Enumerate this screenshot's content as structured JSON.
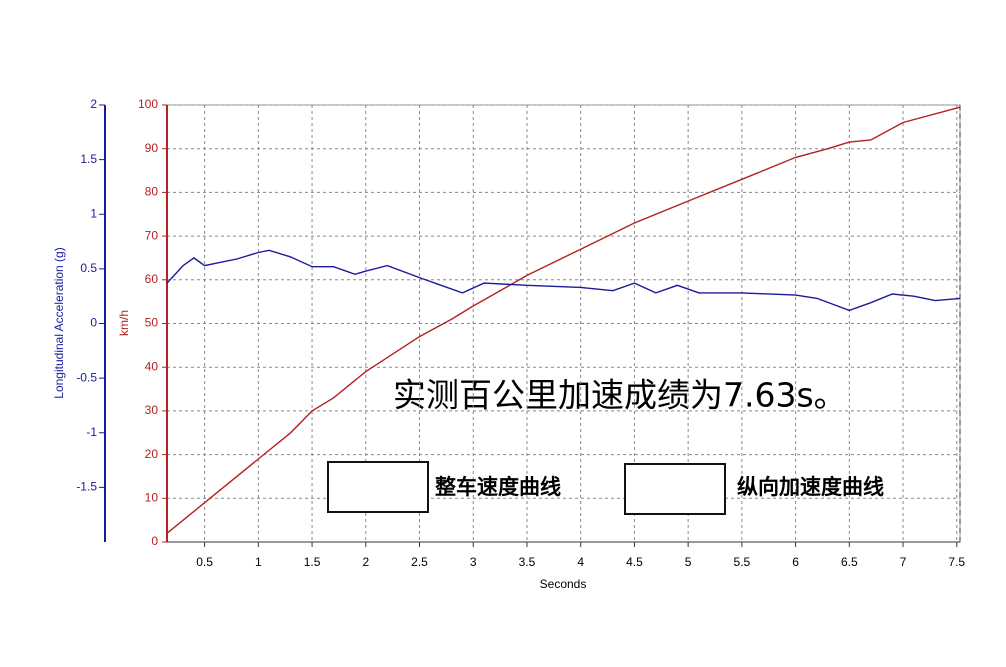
{
  "chart_data": {
    "type": "line",
    "annotation": "实测百公里加速成绩为7.63s。",
    "xlabel": "Seconds",
    "ylabel": "km/h",
    "y2label": "Longitudinal Acceleration (g)",
    "xlim": [
      0.15,
      7.53
    ],
    "xticks": [
      0.5,
      1,
      1.5,
      2,
      2.5,
      3,
      3.5,
      4,
      4.5,
      5,
      5.5,
      6,
      6.5,
      7,
      7.5
    ],
    "ylim": [
      0,
      100
    ],
    "yticks": [
      0,
      10,
      20,
      30,
      40,
      50,
      60,
      70,
      80,
      90,
      100
    ],
    "y2lim": [
      -2,
      2
    ],
    "y2ticks": [
      -1.5,
      -1,
      -0.5,
      0,
      0.5,
      1,
      1.5,
      2
    ],
    "grid": true,
    "series": [
      {
        "name": "整车速度曲线",
        "color": "#b52020",
        "x": [
          0.15,
          0.5,
          1.0,
          1.3,
          1.5,
          1.7,
          2.0,
          2.5,
          2.8,
          3.0,
          3.5,
          4.0,
          4.5,
          5.0,
          5.5,
          6.0,
          6.3,
          6.5,
          6.7,
          7.0,
          7.53
        ],
        "values": [
          2,
          9,
          19,
          25,
          30,
          33,
          39,
          47,
          51,
          54,
          61,
          67,
          73,
          78,
          83,
          88,
          90,
          91.5,
          92,
          96,
          99.5
        ]
      },
      {
        "name": "纵向加速度曲线",
        "color": "#1a1a9c",
        "axis": "y2",
        "x": [
          0.15,
          0.3,
          0.4,
          0.5,
          0.8,
          1.0,
          1.1,
          1.3,
          1.5,
          1.7,
          1.9,
          2.0,
          2.2,
          2.5,
          2.7,
          2.9,
          3.1,
          3.5,
          4.0,
          4.3,
          4.5,
          4.7,
          4.9,
          5.1,
          5.5,
          6.0,
          6.2,
          6.5,
          6.7,
          6.9,
          7.1,
          7.3,
          7.53
        ],
        "values": [
          0.37,
          0.53,
          0.6,
          0.53,
          0.59,
          0.65,
          0.67,
          0.61,
          0.52,
          0.52,
          0.45,
          0.48,
          0.53,
          0.42,
          0.35,
          0.28,
          0.37,
          0.35,
          0.33,
          0.3,
          0.37,
          0.28,
          0.35,
          0.28,
          0.28,
          0.26,
          0.23,
          0.12,
          0.19,
          0.27,
          0.25,
          0.21,
          0.23
        ]
      }
    ]
  }
}
